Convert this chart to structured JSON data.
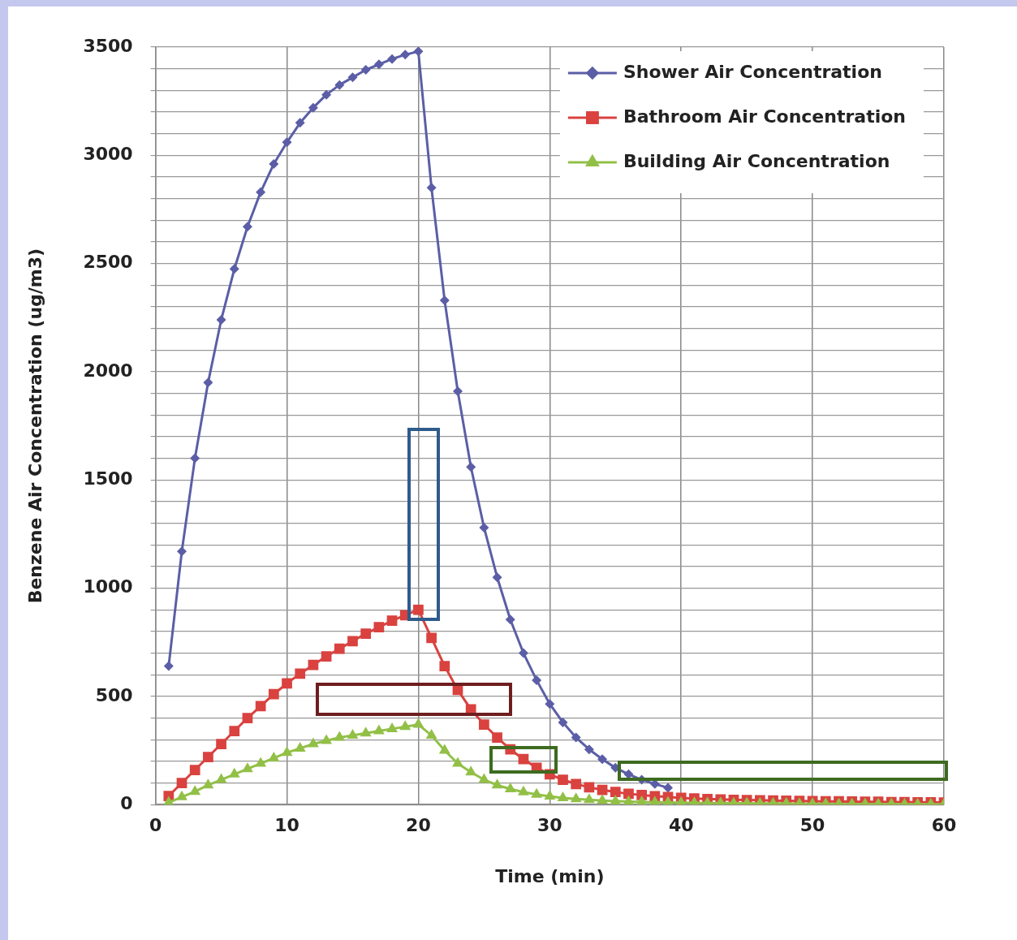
{
  "chart_data": {
    "type": "line",
    "xlabel": "Time (min)",
    "ylabel": "Benzene Air Concentration (ug/m3)",
    "x": [
      1,
      2,
      3,
      4,
      5,
      6,
      7,
      8,
      9,
      10,
      11,
      12,
      13,
      14,
      15,
      16,
      17,
      18,
      19,
      20,
      21,
      22,
      23,
      24,
      25,
      26,
      27,
      28,
      29,
      30,
      31,
      32,
      33,
      34,
      35,
      36,
      37,
      38,
      39,
      40,
      41,
      42,
      43,
      44,
      45,
      46,
      47,
      48,
      49,
      50,
      51,
      52,
      53,
      54,
      55,
      56,
      57,
      58,
      59,
      60
    ],
    "xlim": [
      0,
      60
    ],
    "xticks": [
      0,
      10,
      20,
      30,
      40,
      50,
      60
    ],
    "ylim": [
      0,
      3500
    ],
    "yticks": [
      0,
      {
        "value": 100,
        "label": null
      },
      {
        "value": 200,
        "label": null
      },
      {
        "value": 300,
        "label": null
      },
      {
        "value": 400,
        "label": null
      },
      500,
      {
        "value": 600,
        "label": null
      },
      {
        "value": 700,
        "label": null
      },
      {
        "value": 800,
        "label": null
      },
      {
        "value": 900,
        "label": null
      },
      1000,
      {
        "value": 1100,
        "label": null
      },
      {
        "value": 1200,
        "label": null
      },
      {
        "value": 1300,
        "label": null
      },
      {
        "value": 1400,
        "label": null
      },
      1500,
      {
        "value": 1600,
        "label": null
      },
      {
        "value": 1700,
        "label": null
      },
      {
        "value": 1800,
        "label": null
      },
      {
        "value": 1900,
        "label": null
      },
      2000,
      {
        "value": 2100,
        "label": null
      },
      {
        "value": 2200,
        "label": null
      },
      {
        "value": 2300,
        "label": null
      },
      {
        "value": 2400,
        "label": null
      },
      2500,
      {
        "value": 2600,
        "label": null
      },
      {
        "value": 2700,
        "label": null
      },
      {
        "value": 2800,
        "label": null
      },
      {
        "value": 2900,
        "label": null
      },
      3000,
      {
        "value": 3100,
        "label": null
      },
      {
        "value": 3200,
        "label": null
      },
      {
        "value": 3300,
        "label": null
      },
      {
        "value": 3400,
        "label": null
      },
      3500
    ],
    "grid": true,
    "legend": "top right",
    "series": [
      {
        "name": "Shower Air Concentration",
        "color": "#5b5ea6",
        "marker": "diamond",
        "values": [
          640,
          1170,
          1600,
          1950,
          2240,
          2475,
          2670,
          2830,
          2960,
          3060,
          3150,
          3220,
          3280,
          3325,
          3360,
          3395,
          3420,
          3445,
          3465,
          3480,
          2850,
          2330,
          1910,
          1560,
          1280,
          1050,
          855,
          700,
          575,
          465,
          380,
          310,
          255,
          210,
          170,
          140,
          115,
          95,
          78,
          null,
          null,
          null,
          null,
          null,
          null,
          null,
          null,
          null,
          null,
          null,
          null,
          null,
          null,
          null,
          null,
          null,
          null,
          null,
          null,
          null
        ]
      },
      {
        "name": "Bathroom Air Concentration",
        "color": "#d9423f",
        "marker": "square",
        "values": [
          40,
          100,
          160,
          220,
          280,
          340,
          400,
          455,
          510,
          560,
          605,
          645,
          685,
          720,
          755,
          790,
          820,
          850,
          875,
          900,
          770,
          640,
          530,
          440,
          370,
          310,
          255,
          210,
          170,
          140,
          115,
          95,
          80,
          68,
          58,
          50,
          44,
          39,
          35,
          31,
          28,
          26,
          24,
          22,
          21,
          20,
          19,
          18,
          17,
          16,
          15,
          15,
          14,
          13,
          13,
          12,
          12,
          11,
          11,
          10
        ]
      },
      {
        "name": "Building Air Concentration",
        "color": "#92c047",
        "marker": "triangle",
        "values": [
          10,
          35,
          60,
          90,
          115,
          140,
          165,
          190,
          215,
          240,
          260,
          280,
          295,
          310,
          320,
          330,
          340,
          350,
          360,
          370,
          320,
          250,
          190,
          150,
          115,
          90,
          72,
          58,
          47,
          38,
          31,
          26,
          22,
          19,
          16,
          14,
          12,
          11,
          10,
          9,
          8,
          7,
          7,
          6,
          6,
          5,
          5,
          5,
          4,
          4,
          4,
          3,
          3,
          3,
          3,
          3,
          2,
          2,
          2,
          2
        ]
      }
    ]
  }
}
